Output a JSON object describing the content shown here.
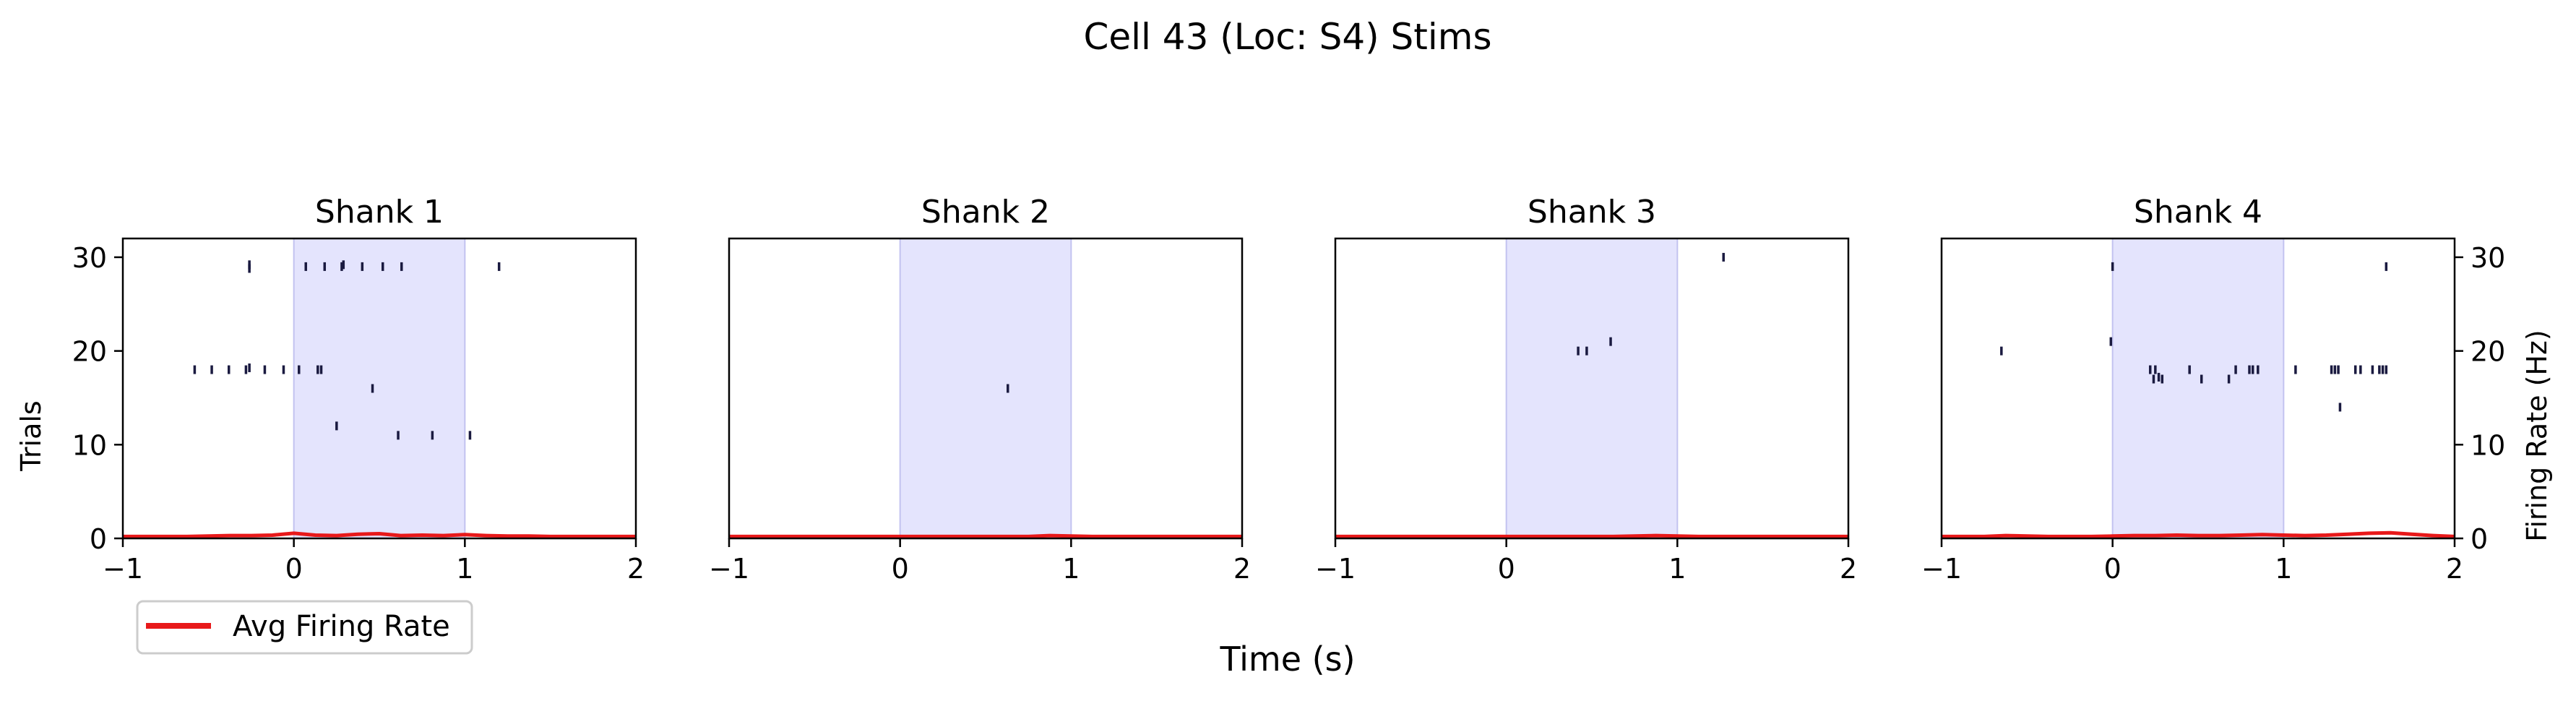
{
  "figure": {
    "title": "Cell 43 (Loc: S4) Stims",
    "xlabel": "Time (s)",
    "ylabel_left": "Trials",
    "ylabel_right": "Firing Rate (Hz)",
    "legend_label": "Avg Firing Rate",
    "legend_position": "bottom-left"
  },
  "colors": {
    "spike": "#1a1a40",
    "avg_rate": "#e8191a",
    "stim_fill": "#e4e4fd",
    "stim_edge": "#c2c2f0",
    "axes": "#000000"
  },
  "chart_data": [
    {
      "type": "scatter",
      "title": "Shank 1",
      "xlim": [
        -1,
        2
      ],
      "ylim": [
        0,
        32
      ],
      "xticks": [
        "−1",
        "0",
        "1",
        "2"
      ],
      "yticks": [
        "0",
        "10",
        "20",
        "30"
      ],
      "stim_window": [
        0,
        1
      ],
      "spikes": [
        {
          "t": -0.26,
          "trial": 29.2
        },
        {
          "t": -0.26,
          "trial": 28.8
        },
        {
          "t": 0.07,
          "trial": 29
        },
        {
          "t": 0.18,
          "trial": 29
        },
        {
          "t": 0.28,
          "trial": 29
        },
        {
          "t": 0.29,
          "trial": 29.2
        },
        {
          "t": 0.4,
          "trial": 29
        },
        {
          "t": 0.52,
          "trial": 29
        },
        {
          "t": 0.63,
          "trial": 29
        },
        {
          "t": 1.2,
          "trial": 29
        },
        {
          "t": -0.58,
          "trial": 18
        },
        {
          "t": -0.48,
          "trial": 18
        },
        {
          "t": -0.38,
          "trial": 18
        },
        {
          "t": -0.28,
          "trial": 18
        },
        {
          "t": -0.26,
          "trial": 18.2
        },
        {
          "t": -0.17,
          "trial": 18
        },
        {
          "t": -0.06,
          "trial": 18
        },
        {
          "t": 0.03,
          "trial": 18
        },
        {
          "t": 0.14,
          "trial": 18
        },
        {
          "t": 0.16,
          "trial": 18
        },
        {
          "t": 0.46,
          "trial": 16
        },
        {
          "t": 0.25,
          "trial": 12
        },
        {
          "t": 0.61,
          "trial": 11
        },
        {
          "t": 0.81,
          "trial": 11
        },
        {
          "t": 1.03,
          "trial": 11
        }
      ],
      "avg_rate_y": [
        0.2,
        0.2,
        0.2,
        0.2,
        0.25,
        0.3,
        0.3,
        0.35,
        0.55,
        0.35,
        0.3,
        0.45,
        0.5,
        0.3,
        0.35,
        0.3,
        0.4,
        0.3,
        0.25,
        0.25,
        0.2,
        0.2,
        0.2,
        0.2,
        0.2
      ]
    },
    {
      "type": "scatter",
      "title": "Shank 2",
      "xlim": [
        -1,
        2
      ],
      "ylim": [
        0,
        32
      ],
      "xticks": [
        "−1",
        "0",
        "1",
        "2"
      ],
      "yticks": [],
      "stim_window": [
        0,
        1
      ],
      "spikes": [
        {
          "t": 0.63,
          "trial": 16
        }
      ],
      "avg_rate_y": [
        0.2,
        0.2,
        0.2,
        0.2,
        0.2,
        0.2,
        0.2,
        0.2,
        0.2,
        0.2,
        0.2,
        0.2,
        0.2,
        0.2,
        0.2,
        0.3,
        0.25,
        0.2,
        0.2,
        0.2,
        0.2,
        0.2,
        0.2,
        0.2,
        0.2
      ]
    },
    {
      "type": "scatter",
      "title": "Shank 3",
      "xlim": [
        -1,
        2
      ],
      "ylim": [
        0,
        32
      ],
      "xticks": [
        "−1",
        "0",
        "1",
        "2"
      ],
      "yticks": [],
      "stim_window": [
        0,
        1
      ],
      "spikes": [
        {
          "t": 1.27,
          "trial": 30
        },
        {
          "t": 0.42,
          "trial": 20
        },
        {
          "t": 0.47,
          "trial": 20
        },
        {
          "t": 0.61,
          "trial": 21
        }
      ],
      "avg_rate_y": [
        0.2,
        0.2,
        0.2,
        0.2,
        0.2,
        0.2,
        0.2,
        0.2,
        0.2,
        0.2,
        0.2,
        0.2,
        0.2,
        0.2,
        0.25,
        0.3,
        0.25,
        0.2,
        0.2,
        0.2,
        0.2,
        0.2,
        0.2,
        0.2,
        0.2
      ]
    },
    {
      "type": "scatter",
      "title": "Shank 4",
      "xlim": [
        -1,
        2
      ],
      "ylim": [
        0,
        32
      ],
      "xticks": [
        "−1",
        "0",
        "1",
        "2"
      ],
      "yticks": [
        "0",
        "10",
        "20",
        "30"
      ],
      "stim_window": [
        0,
        1
      ],
      "spikes": [
        {
          "t": 0.0,
          "trial": 29
        },
        {
          "t": 1.6,
          "trial": 29
        },
        {
          "t": -0.65,
          "trial": 20
        },
        {
          "t": -0.01,
          "trial": 21
        },
        {
          "t": 0.22,
          "trial": 18
        },
        {
          "t": 0.25,
          "trial": 18
        },
        {
          "t": 0.27,
          "trial": 17.2
        },
        {
          "t": 0.24,
          "trial": 17
        },
        {
          "t": 0.29,
          "trial": 17
        },
        {
          "t": 0.45,
          "trial": 18
        },
        {
          "t": 0.52,
          "trial": 17
        },
        {
          "t": 0.68,
          "trial": 17
        },
        {
          "t": 0.72,
          "trial": 18
        },
        {
          "t": 0.8,
          "trial": 18
        },
        {
          "t": 0.82,
          "trial": 18
        },
        {
          "t": 0.85,
          "trial": 18
        },
        {
          "t": 1.07,
          "trial": 18
        },
        {
          "t": 1.28,
          "trial": 18
        },
        {
          "t": 1.3,
          "trial": 18
        },
        {
          "t": 1.32,
          "trial": 18
        },
        {
          "t": 1.33,
          "trial": 14
        },
        {
          "t": 1.42,
          "trial": 18
        },
        {
          "t": 1.45,
          "trial": 18
        },
        {
          "t": 1.52,
          "trial": 18
        },
        {
          "t": 1.56,
          "trial": 18
        },
        {
          "t": 1.58,
          "trial": 18
        },
        {
          "t": 1.6,
          "trial": 18
        }
      ],
      "avg_rate_y": [
        0.2,
        0.2,
        0.2,
        0.3,
        0.25,
        0.2,
        0.2,
        0.2,
        0.25,
        0.3,
        0.3,
        0.35,
        0.3,
        0.3,
        0.35,
        0.4,
        0.35,
        0.3,
        0.35,
        0.45,
        0.55,
        0.6,
        0.45,
        0.3,
        0.2
      ]
    }
  ]
}
